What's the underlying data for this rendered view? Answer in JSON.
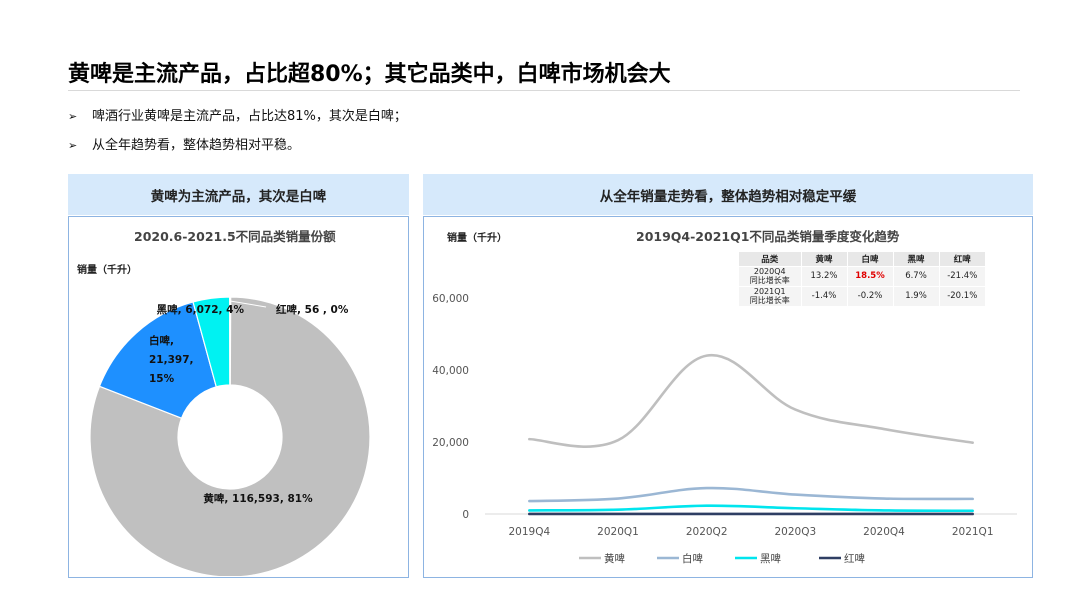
{
  "page": {
    "title": "黄啤是主流产品，占比超80%；其它品类中，白啤市场机会大",
    "bullet_marker": "➢",
    "bullets": [
      "啤酒行业黄啤是主流产品，占比达81%，其次是白啤；",
      "从全年趋势看，整体趋势相对平稳。"
    ]
  },
  "left_panel": {
    "header": "黄啤为主流产品，其次是白啤",
    "chart_title": "2020.6-2021.5不同品类销量份额",
    "unit_label": "销量（千升）"
  },
  "right_panel": {
    "header": "从全年销量走势看，整体趋势相对稳定平缓",
    "chart_title": "2019Q4-2021Q1不同品类销量季度变化趋势",
    "unit_label": "销量（千升）"
  },
  "growth_table": {
    "headers": [
      "品类",
      "黄啤",
      "白啤",
      "黑啤",
      "红啤"
    ],
    "rows": [
      {
        "label_line1": "2020Q4",
        "label_line2": "同比增长率",
        "values": [
          "13.2%",
          "18.5%",
          "6.7%",
          "-21.4%"
        ],
        "highlight_index": 1
      },
      {
        "label_line1": "2021Q1",
        "label_line2": "同比增长率",
        "values": [
          "-1.4%",
          "-0.2%",
          "1.9%",
          "-20.1%"
        ],
        "highlight_index": -1
      }
    ],
    "highlight_color": "#e00000"
  },
  "chart_data": [
    {
      "type": "pie",
      "donut": true,
      "title": "2020.6-2021.5不同品类销量份额",
      "unit": "销量（千升）",
      "slices": [
        {
          "name": "黄啤",
          "value": 116593,
          "percent": "81%",
          "label": "黄啤, 116,593, 81%",
          "color": "#c0c0c0"
        },
        {
          "name": "白啤",
          "value": 21397,
          "percent": "15%",
          "label_lines": [
            "白啤,",
            "21,397,",
            "15%"
          ],
          "color": "#1e90ff"
        },
        {
          "name": "黑啤",
          "value": 6072,
          "percent": "4%",
          "label": "黑啤, 6,072, 4%",
          "color": "#00f2f2"
        },
        {
          "name": "红啤",
          "value": 56,
          "percent": "0%",
          "label": "红啤, 56 , 0%",
          "color": "#2f4a7a"
        }
      ]
    },
    {
      "type": "line",
      "smooth": true,
      "title": "2019Q4-2021Q1不同品类销量季度变化趋势",
      "ylabel": "销量（千升）",
      "categories": [
        "2019Q4",
        "2020Q1",
        "2020Q2",
        "2020Q3",
        "2020Q4",
        "2021Q1"
      ],
      "ylim": [
        0,
        60000
      ],
      "yticks": [
        0,
        20000,
        40000,
        60000
      ],
      "ytick_labels": [
        "0",
        "20,000",
        "40,000",
        "60,000"
      ],
      "grid": false,
      "legend_position": "bottom",
      "series": [
        {
          "name": "黄啤",
          "color": "#bfbfbf",
          "values": [
            20800,
            20500,
            44000,
            29000,
            23600,
            19800
          ]
        },
        {
          "name": "白啤",
          "color": "#9bb7d4",
          "values": [
            3600,
            4300,
            7200,
            5400,
            4300,
            4200
          ]
        },
        {
          "name": "黑啤",
          "color": "#00e5ee",
          "values": [
            1000,
            1200,
            2300,
            1600,
            1000,
            900
          ]
        },
        {
          "name": "红啤",
          "color": "#2f3e63",
          "values": [
            10,
            10,
            20,
            15,
            10,
            10
          ]
        }
      ]
    }
  ]
}
